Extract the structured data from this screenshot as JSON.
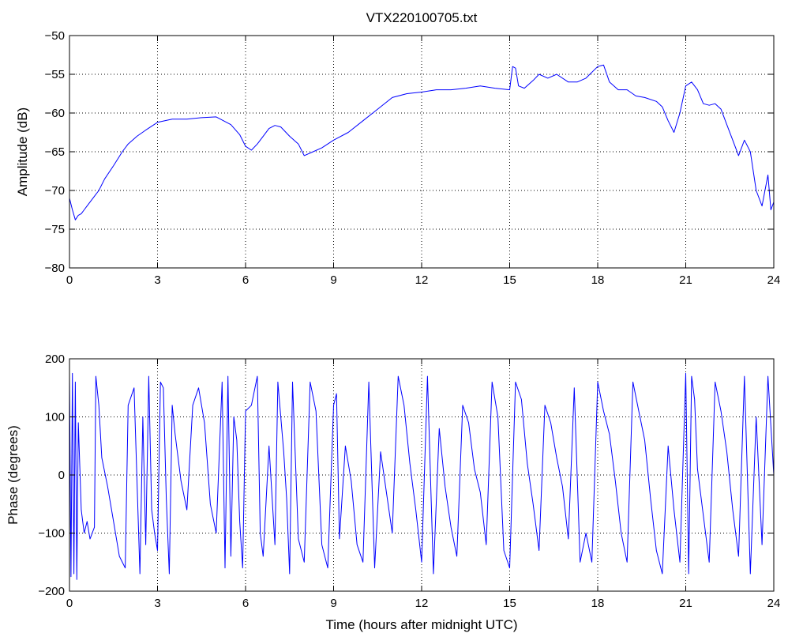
{
  "figure": {
    "title": "VTX220100705.txt"
  },
  "chart_data": [
    {
      "type": "line",
      "title": "VTX220100705.txt",
      "xlabel": "",
      "ylabel": "Amplitude (dB)",
      "xlim": [
        0,
        24
      ],
      "ylim": [
        -80,
        -50
      ],
      "xticks": [
        0,
        3,
        6,
        9,
        12,
        15,
        18,
        21,
        24
      ],
      "yticks": [
        -80,
        -75,
        -70,
        -65,
        -60,
        -55,
        -50
      ],
      "xtick_labels": [
        "0",
        "3",
        "6",
        "9",
        "12",
        "15",
        "18",
        "21",
        "24"
      ],
      "ytick_labels": [
        "−80",
        "−75",
        "−70",
        "−65",
        "−60",
        "−55",
        "−50"
      ],
      "grid": true,
      "color": "#0000ff",
      "series": [
        {
          "x": [
            0,
            0.1,
            0.2,
            0.3,
            0.4,
            0.5,
            0.6,
            0.7,
            0.8,
            0.9,
            1.0,
            1.2,
            1.5,
            1.8,
            2.0,
            2.3,
            2.6,
            3.0,
            3.5,
            4.0,
            4.5,
            5.0,
            5.5,
            5.8,
            6.0,
            6.2,
            6.4,
            6.6,
            6.8,
            7.0,
            7.2,
            7.5,
            7.8,
            8.0,
            8.3,
            8.6,
            9.0,
            9.5,
            10.0,
            10.5,
            11.0,
            11.5,
            12.0,
            12.5,
            13.0,
            13.5,
            14.0,
            14.5,
            15.0,
            15.1,
            15.2,
            15.3,
            15.5,
            15.8,
            16.0,
            16.3,
            16.6,
            17.0,
            17.3,
            17.6,
            18.0,
            18.2,
            18.4,
            18.7,
            19.0,
            19.3,
            19.6,
            20.0,
            20.2,
            20.4,
            20.6,
            20.8,
            21.0,
            21.2,
            21.4,
            21.6,
            21.8,
            22.0,
            22.2,
            22.4,
            22.6,
            22.8,
            23.0,
            23.2,
            23.4,
            23.6,
            23.8,
            23.9,
            24.0
          ],
          "y": [
            -71.0,
            -72.5,
            -73.8,
            -73.2,
            -73.0,
            -72.5,
            -72.0,
            -71.5,
            -71.0,
            -70.5,
            -70.0,
            -68.5,
            -66.8,
            -65.0,
            -64.0,
            -63.0,
            -62.2,
            -61.2,
            -60.8,
            -60.8,
            -60.6,
            -60.5,
            -61.5,
            -62.8,
            -64.3,
            -64.8,
            -64.0,
            -63.0,
            -62.0,
            -61.6,
            -61.8,
            -63.0,
            -64.0,
            -65.5,
            -65.0,
            -64.5,
            -63.5,
            -62.5,
            -61.0,
            -59.5,
            -58.0,
            -57.5,
            -57.3,
            -57.0,
            -57.0,
            -56.8,
            -56.5,
            -56.8,
            -57.0,
            -54.0,
            -54.2,
            -56.5,
            -56.8,
            -55.8,
            -55.0,
            -55.5,
            -55.0,
            -56.0,
            -56.0,
            -55.5,
            -54.0,
            -53.8,
            -56.0,
            -57.0,
            -57.0,
            -57.8,
            -58.0,
            -58.5,
            -59.2,
            -61.0,
            -62.5,
            -60.0,
            -56.5,
            -56.0,
            -57.0,
            -58.8,
            -59.0,
            -58.8,
            -59.5,
            -61.5,
            -63.5,
            -65.5,
            -63.5,
            -65.0,
            -70.0,
            -72.0,
            -68.0,
            -72.5,
            -71.5
          ]
        }
      ]
    },
    {
      "type": "line",
      "title": "",
      "xlabel": "Time (hours after midnight UTC)",
      "ylabel": "Phase (degrees)",
      "xlim": [
        0,
        24
      ],
      "ylim": [
        -200,
        200
      ],
      "xticks": [
        0,
        3,
        6,
        9,
        12,
        15,
        18,
        21,
        24
      ],
      "yticks": [
        -200,
        -100,
        0,
        100,
        200
      ],
      "xtick_labels": [
        "0",
        "3",
        "6",
        "9",
        "12",
        "15",
        "18",
        "21",
        "24"
      ],
      "ytick_labels": [
        "−200",
        "−100",
        "0",
        "100",
        "200"
      ],
      "grid": true,
      "color": "#0000ff",
      "series": [
        {
          "x": [
            0,
            0.05,
            0.1,
            0.15,
            0.2,
            0.25,
            0.3,
            0.4,
            0.5,
            0.6,
            0.7,
            0.85,
            0.9,
            1.0,
            1.1,
            1.3,
            1.5,
            1.7,
            1.9,
            2.0,
            2.2,
            2.4,
            2.5,
            2.6,
            2.7,
            2.8,
            2.9,
            3.0,
            3.1,
            3.2,
            3.3,
            3.4,
            3.5,
            3.6,
            3.8,
            4.0,
            4.2,
            4.4,
            4.6,
            4.8,
            5.0,
            5.2,
            5.3,
            5.4,
            5.5,
            5.6,
            5.7,
            5.8,
            5.9,
            6.0,
            6.2,
            6.4,
            6.5,
            6.6,
            6.8,
            7.0,
            7.1,
            7.2,
            7.3,
            7.4,
            7.5,
            7.6,
            7.8,
            8.0,
            8.2,
            8.4,
            8.6,
            8.8,
            9.0,
            9.1,
            9.2,
            9.4,
            9.6,
            9.8,
            10.0,
            10.2,
            10.4,
            10.6,
            10.8,
            11.0,
            11.2,
            11.4,
            11.6,
            11.8,
            12.0,
            12.2,
            12.4,
            12.6,
            12.8,
            13.0,
            13.2,
            13.4,
            13.6,
            13.8,
            14.0,
            14.2,
            14.4,
            14.6,
            14.8,
            15.0,
            15.2,
            15.4,
            15.6,
            15.8,
            16.0,
            16.2,
            16.4,
            16.6,
            16.8,
            17.0,
            17.2,
            17.4,
            17.6,
            17.8,
            18.0,
            18.2,
            18.4,
            18.6,
            18.8,
            19.0,
            19.2,
            19.4,
            19.6,
            19.8,
            20.0,
            20.2,
            20.4,
            20.6,
            20.8,
            21.0,
            21.1,
            21.2,
            21.3,
            21.4,
            21.6,
            21.8,
            22.0,
            22.2,
            22.4,
            22.6,
            22.8,
            23.0,
            23.2,
            23.4,
            23.6,
            23.8,
            24.0
          ],
          "y": [
            170,
            -175,
            175,
            -170,
            160,
            -180,
            90,
            -60,
            -100,
            -80,
            -110,
            -90,
            170,
            120,
            30,
            -20,
            -80,
            -140,
            -160,
            120,
            150,
            -170,
            100,
            -120,
            170,
            -60,
            -100,
            -130,
            160,
            150,
            -40,
            -170,
            120,
            70,
            -10,
            -60,
            120,
            150,
            90,
            -50,
            -100,
            160,
            -160,
            170,
            -140,
            100,
            60,
            -80,
            -160,
            110,
            120,
            170,
            -100,
            -140,
            50,
            -120,
            160,
            100,
            40,
            -40,
            -170,
            160,
            -110,
            -150,
            160,
            110,
            -120,
            -160,
            120,
            140,
            -110,
            50,
            -10,
            -120,
            -150,
            160,
            -160,
            40,
            -30,
            -100,
            170,
            120,
            20,
            -60,
            -150,
            170,
            -170,
            80,
            -20,
            -90,
            -140,
            120,
            90,
            10,
            -30,
            -120,
            160,
            100,
            -130,
            -160,
            160,
            130,
            20,
            -50,
            -130,
            120,
            90,
            30,
            -20,
            -110,
            150,
            -150,
            -100,
            -150,
            160,
            110,
            70,
            -10,
            -100,
            -150,
            160,
            110,
            60,
            -40,
            -130,
            -170,
            50,
            -60,
            -150,
            175,
            -170,
            170,
            130,
            10,
            -70,
            -150,
            160,
            110,
            40,
            -60,
            -140,
            170,
            -170,
            100,
            -120,
            170,
            0
          ]
        }
      ]
    }
  ]
}
